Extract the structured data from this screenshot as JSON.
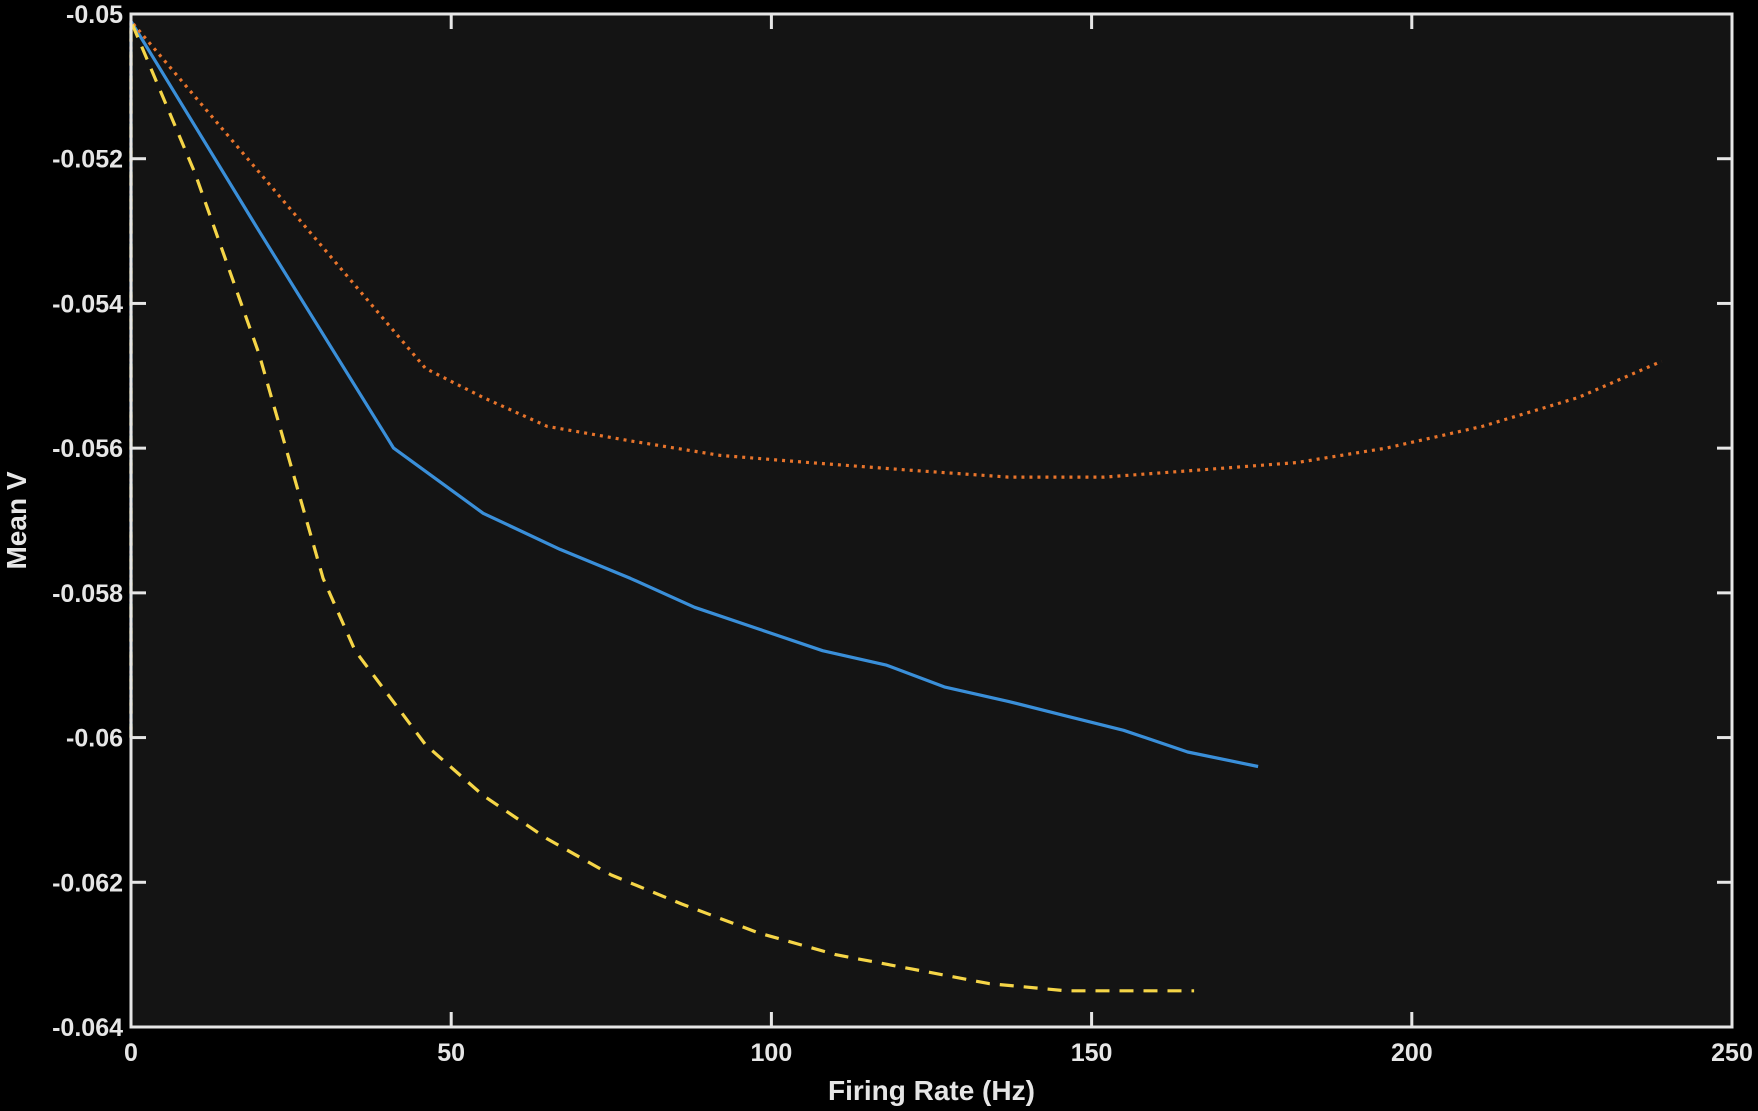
{
  "chart_data": {
    "type": "line",
    "title": "",
    "xlabel": "Firing Rate (Hz)",
    "ylabel": "Mean V",
    "xlim": [
      0,
      250
    ],
    "ylim": [
      -0.064,
      -0.05
    ],
    "xticks": [
      0,
      50,
      100,
      150,
      200,
      250
    ],
    "xtick_labels": [
      "0",
      "50",
      "100",
      "150",
      "200",
      "250"
    ],
    "yticks": [
      -0.064,
      -0.062,
      -0.06,
      -0.058,
      -0.056,
      -0.054,
      -0.052,
      -0.05
    ],
    "ytick_labels": [
      "-0.064",
      "-0.062",
      "-0.06",
      "-0.058",
      "-0.056",
      "-0.054",
      "-0.052",
      "-0.05"
    ],
    "grid": false,
    "legend": "none",
    "colors": {
      "background": "#000000",
      "axes_face": "#141414",
      "axes": "#e6e6e6"
    },
    "series": [
      {
        "color": "#3a8fd9",
        "style": "solid",
        "x": [
          0,
          0,
          20,
          41,
          55,
          67,
          78,
          88,
          98,
          108,
          118,
          127,
          137,
          146,
          155,
          165,
          176
        ],
        "y": [
          -0.06,
          -0.0501,
          -0.053,
          -0.056,
          -0.0569,
          -0.0574,
          -0.0578,
          -0.0582,
          -0.0585,
          -0.0588,
          -0.059,
          -0.0593,
          -0.0595,
          -0.0597,
          -0.0599,
          -0.0602,
          -0.0604
        ]
      },
      {
        "color": "#e8742b",
        "style": "dotted",
        "x": [
          0,
          0,
          46,
          55,
          65,
          78,
          92,
          106,
          121,
          137,
          152,
          167,
          182,
          196,
          211,
          226,
          239
        ],
        "y": [
          -0.06,
          -0.0501,
          -0.0549,
          -0.0553,
          -0.0557,
          -0.0559,
          -0.0561,
          -0.0562,
          -0.0563,
          -0.0564,
          -0.0564,
          -0.0563,
          -0.0562,
          -0.056,
          -0.0557,
          -0.0553,
          -0.0548
        ]
      },
      {
        "color": "#f5d547",
        "style": "dashed",
        "x": [
          0,
          0,
          10,
          20,
          30,
          35,
          46,
          55,
          65,
          75,
          86,
          98,
          110,
          122,
          134,
          146,
          156,
          166
        ],
        "y": [
          -0.06,
          -0.0501,
          -0.0522,
          -0.0547,
          -0.0578,
          -0.0588,
          -0.0601,
          -0.0608,
          -0.0614,
          -0.0619,
          -0.0623,
          -0.0627,
          -0.063,
          -0.0632,
          -0.0634,
          -0.0635,
          -0.0635,
          -0.0635
        ]
      }
    ]
  }
}
